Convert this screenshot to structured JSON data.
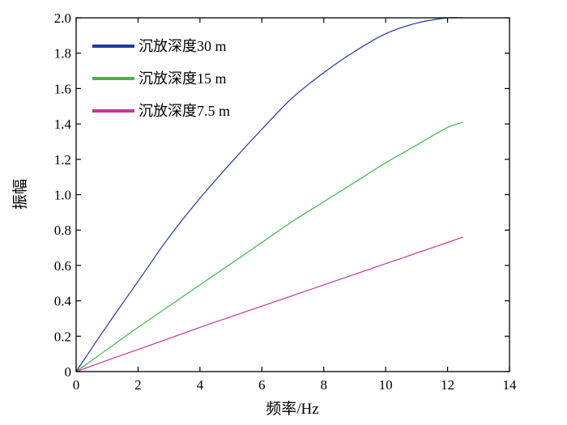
{
  "chart_data": {
    "type": "line",
    "title": "",
    "xlabel": "频率/Hz",
    "ylabel": "振幅",
    "xlim": [
      0,
      14
    ],
    "ylim": [
      0,
      2.0
    ],
    "xticks": [
      0,
      2,
      4,
      6,
      8,
      10,
      12,
      14
    ],
    "yticks": [
      0,
      0.2,
      0.4,
      0.6,
      0.8,
      1.0,
      1.2,
      1.4,
      1.6,
      1.8,
      2.0
    ],
    "xtick_labels": [
      "0",
      "2",
      "4",
      "6",
      "8",
      "10",
      "12",
      "14"
    ],
    "ytick_labels": [
      "0",
      "0.2",
      "0.4",
      "0.6",
      "0.8",
      "1.0",
      "1.2",
      "1.4",
      "1.6",
      "1.8",
      "2.0"
    ],
    "grid": false,
    "legend_position": "top-left",
    "series": [
      {
        "name": "沉放深度30 m",
        "color": "#1f3a9a",
        "x": [
          0,
          1,
          2,
          3,
          4,
          5,
          6,
          7,
          8,
          9,
          10,
          11,
          12,
          12.5
        ],
        "y": [
          0,
          0.26,
          0.51,
          0.76,
          0.98,
          1.18,
          1.37,
          1.55,
          1.69,
          1.81,
          1.91,
          1.97,
          2.0,
          2.0
        ]
      },
      {
        "name": "沉放深度15 m",
        "color": "#3cb84a",
        "x": [
          0,
          1,
          2,
          3,
          4,
          5,
          6,
          7,
          8,
          9,
          10,
          11,
          12,
          12.5
        ],
        "y": [
          0,
          0.125,
          0.25,
          0.37,
          0.49,
          0.61,
          0.73,
          0.85,
          0.96,
          1.07,
          1.18,
          1.28,
          1.38,
          1.41
        ]
      },
      {
        "name": "沉放深度7.5 m",
        "color": "#c0379a",
        "x": [
          0,
          1,
          2,
          3,
          4,
          5,
          6,
          7,
          8,
          9,
          10,
          11,
          12,
          12.5
        ],
        "y": [
          0,
          0.063,
          0.125,
          0.187,
          0.25,
          0.31,
          0.37,
          0.43,
          0.49,
          0.55,
          0.61,
          0.67,
          0.73,
          0.76
        ]
      }
    ]
  }
}
